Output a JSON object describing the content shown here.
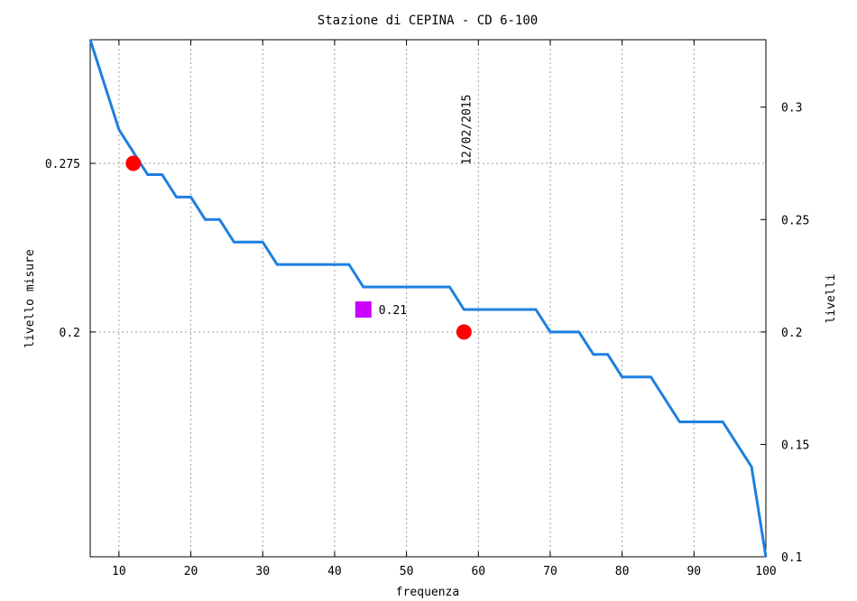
{
  "chart_data": {
    "type": "line",
    "title": "Stazione di CEPINA - CD 6-100",
    "xlabel": "frequenza",
    "ylabel_left": "livello misure",
    "ylabel_right": "livelli",
    "xlim": [
      6,
      100
    ],
    "ylim": [
      0.1,
      0.33
    ],
    "grid": true,
    "x_ticks": [
      10,
      20,
      30,
      40,
      50,
      60,
      70,
      80,
      90,
      100
    ],
    "y_ticks_left": [
      {
        "value": 0.275,
        "label": "0.275"
      },
      {
        "value": 0.2,
        "label": "0.2"
      }
    ],
    "y_ticks_right": [
      {
        "value": 0.3,
        "label": "0.3"
      },
      {
        "value": 0.25,
        "label": "0.25"
      },
      {
        "value": 0.2,
        "label": "0.2"
      },
      {
        "value": 0.15,
        "label": "0.15"
      },
      {
        "value": 0.1,
        "label": "0.1"
      }
    ],
    "series": [
      {
        "color": "#1f7fe0",
        "points": [
          [
            6,
            0.33
          ],
          [
            10,
            0.29
          ],
          [
            14,
            0.27
          ],
          [
            16,
            0.27
          ],
          [
            18,
            0.26
          ],
          [
            20,
            0.26
          ],
          [
            22,
            0.25
          ],
          [
            24,
            0.25
          ],
          [
            26,
            0.24
          ],
          [
            30,
            0.24
          ],
          [
            32,
            0.23
          ],
          [
            42,
            0.23
          ],
          [
            44,
            0.22
          ],
          [
            56,
            0.22
          ],
          [
            58,
            0.21
          ],
          [
            68,
            0.21
          ],
          [
            70,
            0.2
          ],
          [
            74,
            0.2
          ],
          [
            76,
            0.19
          ],
          [
            78,
            0.19
          ],
          [
            80,
            0.18
          ],
          [
            84,
            0.18
          ],
          [
            88,
            0.16
          ],
          [
            94,
            0.16
          ],
          [
            98,
            0.14
          ],
          [
            100,
            0.1
          ]
        ]
      }
    ],
    "markers": [
      {
        "shape": "circle",
        "x": 12,
        "y": 0.275,
        "color": "#ff0000"
      },
      {
        "shape": "circle",
        "x": 58,
        "y": 0.2,
        "color": "#ff0000"
      },
      {
        "shape": "square",
        "x": 44,
        "y": 0.21,
        "color": "#cc00ff",
        "label": "0.21"
      }
    ],
    "annotations": [
      {
        "text": "12/02/2015",
        "x": 58,
        "y": 0.29,
        "rotation": -90
      }
    ]
  }
}
